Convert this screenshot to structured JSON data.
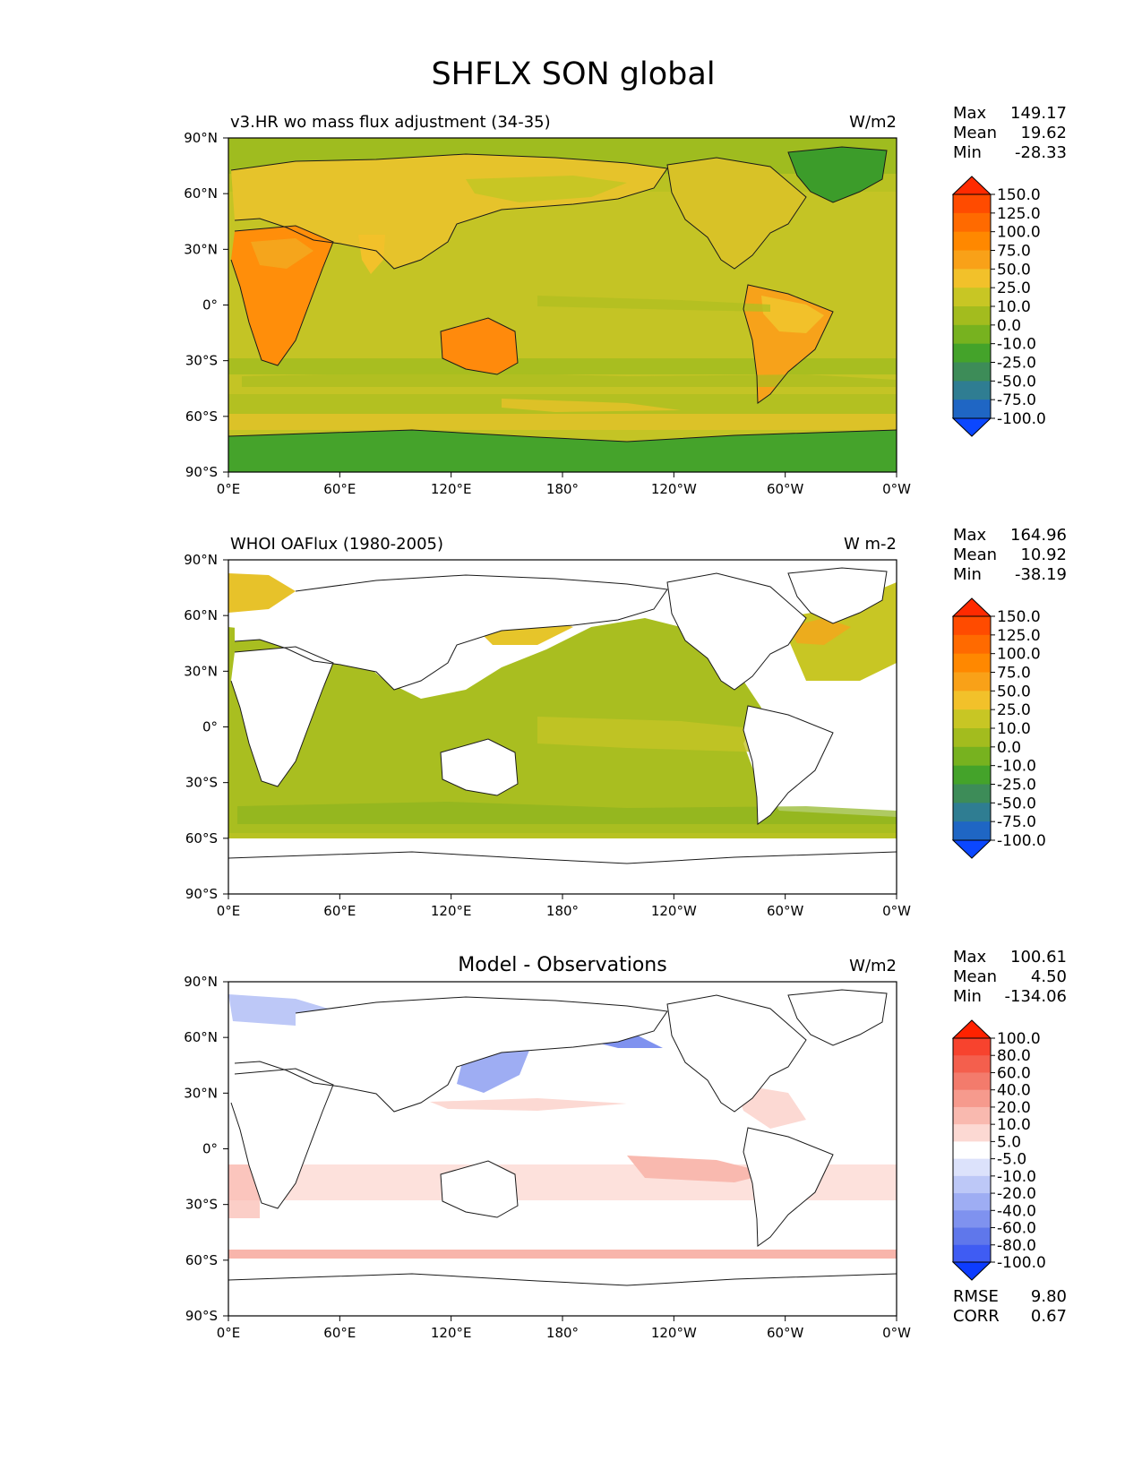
{
  "figure": {
    "title": "SHFLX SON global"
  },
  "axes": {
    "lat_ticks": [
      "90°N",
      "60°N",
      "30°N",
      "0°",
      "30°S",
      "60°S",
      "90°S"
    ],
    "lon_ticks": [
      "0°E",
      "60°E",
      "120°E",
      "180°",
      "120°W",
      "60°W",
      "0°W"
    ]
  },
  "panels": [
    {
      "id": "model",
      "left_title": "v3.HR wo mass flux adjustment (34-35)",
      "center_title": "",
      "units": "W/m2",
      "stats": {
        "max_label": "Max",
        "max": "149.17",
        "mean_label": "Mean",
        "mean": "19.62",
        "min_label": "Min",
        "min": "-28.33"
      },
      "colorbar": {
        "tick_labels": [
          "150.0",
          "125.0",
          "100.0",
          "75.0",
          "50.0",
          "25.0",
          "10.0",
          "0.0",
          "-10.0",
          "-25.0",
          "-50.0",
          "-75.0",
          "-100.0"
        ],
        "colors": [
          "#ff2a00",
          "#ff4b00",
          "#ff6a00",
          "#ff8800",
          "#f9a118",
          "#f2c12a",
          "#c8c624",
          "#a3bc1e",
          "#77b21f",
          "#44a32a",
          "#3d8c58",
          "#2f7d92",
          "#1f66c4",
          "#0b47ff"
        ]
      }
    },
    {
      "id": "obs",
      "left_title": "WHOI OAFlux (1980-2005)",
      "center_title": "",
      "units": "W m-2",
      "stats": {
        "max_label": "Max",
        "max": "164.96",
        "mean_label": "Mean",
        "mean": "10.92",
        "min_label": "Min",
        "min": "-38.19"
      },
      "colorbar": {
        "tick_labels": [
          "150.0",
          "125.0",
          "100.0",
          "75.0",
          "50.0",
          "25.0",
          "10.0",
          "0.0",
          "-10.0",
          "-25.0",
          "-50.0",
          "-75.0",
          "-100.0"
        ],
        "colors": [
          "#ff2a00",
          "#ff4b00",
          "#ff6a00",
          "#ff8800",
          "#f9a118",
          "#f2c12a",
          "#c8c624",
          "#a3bc1e",
          "#77b21f",
          "#44a32a",
          "#3d8c58",
          "#2f7d92",
          "#1f66c4",
          "#0b47ff"
        ]
      }
    },
    {
      "id": "diff",
      "left_title": "",
      "center_title": "Model - Observations",
      "units": "W/m2",
      "stats": {
        "max_label": "Max",
        "max": "100.61",
        "mean_label": "Mean",
        "mean": "4.50",
        "min_label": "Min",
        "min": "-134.06"
      },
      "colorbar": {
        "tick_labels": [
          "100.0",
          "80.0",
          "60.0",
          "40.0",
          "20.0",
          "10.0",
          "5.0",
          "-5.0",
          "-10.0",
          "-20.0",
          "-40.0",
          "-60.0",
          "-80.0",
          "-100.0"
        ],
        "colors": [
          "#ff2200",
          "#f7432e",
          "#f45f4d",
          "#f37b6c",
          "#f69a8d",
          "#f9b9af",
          "#fcd9d3",
          "#ffffff",
          "#dce2fb",
          "#bdc8f7",
          "#9eadf3",
          "#7f92ef",
          "#5f77eb",
          "#3f5cf3",
          "#0d3cff"
        ]
      },
      "metrics": {
        "rmse_label": "RMSE",
        "rmse": "9.80",
        "corr_label": "CORR",
        "corr": "0.67"
      }
    }
  ]
}
